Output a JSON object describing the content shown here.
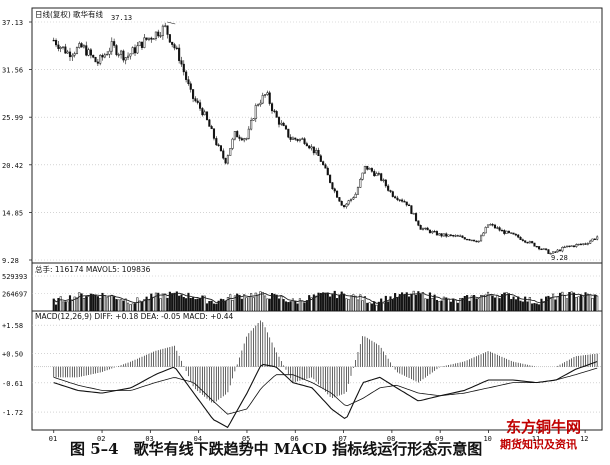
{
  "chart_data": {
    "type": "candlestick",
    "caption": "图 5–4　歌华有线下跌趋势中 MACD 指标线运行形态示意图",
    "watermark": {
      "line1": "东方铜牛网",
      "line2": "期货知识及资讯"
    },
    "price_panel": {
      "header_mode": "日线(复权)",
      "header_name": "歌华有线",
      "y_ticks": [
        "37.13",
        "31.56",
        "25.99",
        "20.42",
        "14.85",
        "9.28"
      ],
      "ylim": [
        9.28,
        37.13
      ],
      "high_label": "37.13",
      "low_label": "9.28",
      "close_path": [
        {
          "m": 1.0,
          "p": 35.0
        },
        {
          "m": 1.3,
          "p": 33.5
        },
        {
          "m": 1.6,
          "p": 34.2
        },
        {
          "m": 1.9,
          "p": 32.3
        },
        {
          "m": 2.2,
          "p": 34.3
        },
        {
          "m": 2.5,
          "p": 33.0
        },
        {
          "m": 2.9,
          "p": 35.0
        },
        {
          "m": 3.3,
          "p": 36.5
        },
        {
          "m": 3.6,
          "p": 33.0
        },
        {
          "m": 3.85,
          "p": 28.5
        },
        {
          "m": 4.1,
          "p": 26.5
        },
        {
          "m": 4.4,
          "p": 22.5
        },
        {
          "m": 4.55,
          "p": 20.8
        },
        {
          "m": 4.75,
          "p": 24.0
        },
        {
          "m": 5.0,
          "p": 23.5
        },
        {
          "m": 5.2,
          "p": 27.5
        },
        {
          "m": 5.4,
          "p": 28.7
        },
        {
          "m": 5.6,
          "p": 26.0
        },
        {
          "m": 5.9,
          "p": 23.5
        },
        {
          "m": 6.2,
          "p": 23.3
        },
        {
          "m": 6.5,
          "p": 21.3
        },
        {
          "m": 6.8,
          "p": 17.5
        },
        {
          "m": 7.0,
          "p": 15.5
        },
        {
          "m": 7.25,
          "p": 17.0
        },
        {
          "m": 7.45,
          "p": 20.2
        },
        {
          "m": 7.75,
          "p": 19.0
        },
        {
          "m": 8.0,
          "p": 17.0
        },
        {
          "m": 8.3,
          "p": 16.0
        },
        {
          "m": 8.6,
          "p": 13.0
        },
        {
          "m": 9.0,
          "p": 12.2
        },
        {
          "m": 9.4,
          "p": 12.0
        },
        {
          "m": 9.8,
          "p": 11.5
        },
        {
          "m": 10.0,
          "p": 13.5
        },
        {
          "m": 10.3,
          "p": 12.6
        },
        {
          "m": 10.6,
          "p": 12.0
        },
        {
          "m": 11.0,
          "p": 10.9
        },
        {
          "m": 11.3,
          "p": 10.0
        },
        {
          "m": 11.6,
          "p": 10.8
        },
        {
          "m": 12.0,
          "p": 11.2
        },
        {
          "m": 12.25,
          "p": 12.0
        }
      ]
    },
    "volume_panel": {
      "header": "总手: 116174 MAVOL5: 109836",
      "y_ticks": [
        "529393",
        "264697"
      ],
      "ylim": [
        0,
        529393
      ]
    },
    "macd_panel": {
      "header": "MACD(12,26,9) DIFF: +0.18 DEA: -0.05 MACD: +0.44",
      "y_ticks": [
        "+1.58",
        "+0.50",
        "-0.61",
        "-1.72"
      ],
      "ylim": [
        -2.4,
        1.7
      ],
      "diff": [
        {
          "m": 1.0,
          "v": -0.6
        },
        {
          "m": 1.5,
          "v": -0.9
        },
        {
          "m": 2.0,
          "v": -1.0
        },
        {
          "m": 2.6,
          "v": -0.8
        },
        {
          "m": 3.1,
          "v": -0.3
        },
        {
          "m": 3.5,
          "v": 0.0
        },
        {
          "m": 3.9,
          "v": -1.0
        },
        {
          "m": 4.3,
          "v": -2.0
        },
        {
          "m": 4.6,
          "v": -2.3
        },
        {
          "m": 5.0,
          "v": -1.0
        },
        {
          "m": 5.3,
          "v": 0.1
        },
        {
          "m": 5.6,
          "v": 0.0
        },
        {
          "m": 5.95,
          "v": -0.6
        },
        {
          "m": 6.35,
          "v": -0.8
        },
        {
          "m": 6.75,
          "v": -1.6
        },
        {
          "m": 7.05,
          "v": -2.0
        },
        {
          "m": 7.4,
          "v": -0.6
        },
        {
          "m": 7.75,
          "v": -0.4
        },
        {
          "m": 8.1,
          "v": -0.8
        },
        {
          "m": 8.55,
          "v": -1.3
        },
        {
          "m": 9.0,
          "v": -1.1
        },
        {
          "m": 9.5,
          "v": -0.9
        },
        {
          "m": 10.0,
          "v": -0.5
        },
        {
          "m": 10.5,
          "v": -0.5
        },
        {
          "m": 11.0,
          "v": -0.6
        },
        {
          "m": 11.4,
          "v": -0.5
        },
        {
          "m": 11.8,
          "v": -0.1
        },
        {
          "m": 12.25,
          "v": 0.2
        }
      ],
      "dea": [
        {
          "m": 1.0,
          "v": -0.4
        },
        {
          "m": 1.5,
          "v": -0.7
        },
        {
          "m": 2.0,
          "v": -0.9
        },
        {
          "m": 2.6,
          "v": -0.9
        },
        {
          "m": 3.1,
          "v": -0.6
        },
        {
          "m": 3.5,
          "v": -0.4
        },
        {
          "m": 3.9,
          "v": -0.6
        },
        {
          "m": 4.3,
          "v": -1.3
        },
        {
          "m": 4.6,
          "v": -1.8
        },
        {
          "m": 5.0,
          "v": -1.6
        },
        {
          "m": 5.3,
          "v": -0.8
        },
        {
          "m": 5.6,
          "v": -0.3
        },
        {
          "m": 5.95,
          "v": -0.3
        },
        {
          "m": 6.35,
          "v": -0.6
        },
        {
          "m": 6.75,
          "v": -1.0
        },
        {
          "m": 7.05,
          "v": -1.5
        },
        {
          "m": 7.4,
          "v": -1.2
        },
        {
          "m": 7.75,
          "v": -0.8
        },
        {
          "m": 8.1,
          "v": -0.7
        },
        {
          "m": 8.55,
          "v": -1.0
        },
        {
          "m": 9.0,
          "v": -1.1
        },
        {
          "m": 9.5,
          "v": -1.0
        },
        {
          "m": 10.0,
          "v": -0.8
        },
        {
          "m": 10.5,
          "v": -0.6
        },
        {
          "m": 11.0,
          "v": -0.6
        },
        {
          "m": 11.4,
          "v": -0.5
        },
        {
          "m": 11.8,
          "v": -0.3
        },
        {
          "m": 12.25,
          "v": -0.05
        }
      ]
    },
    "x_ticks": [
      "01",
      "02",
      "03",
      "04",
      "05",
      "06",
      "07",
      "08",
      "09",
      "10",
      "11",
      "12"
    ]
  }
}
